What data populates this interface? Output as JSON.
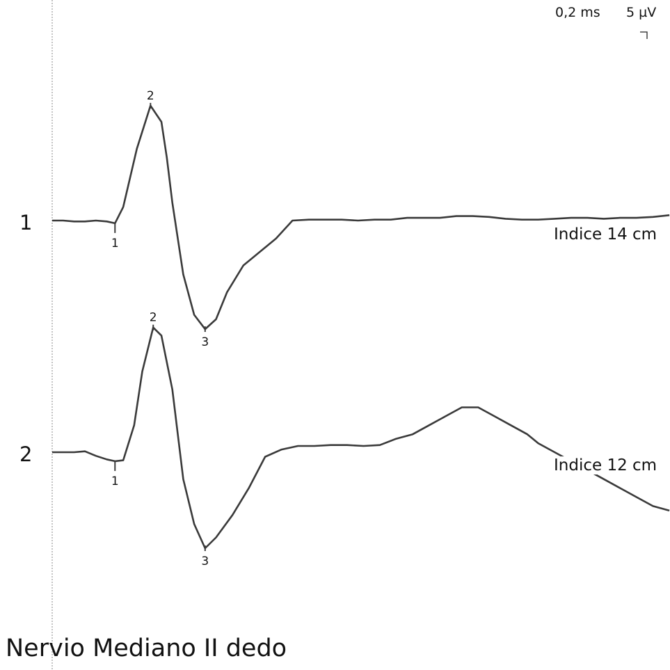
{
  "figure_title": "Nervio Mediano II dedo",
  "scale": {
    "time": "0,2 ms",
    "amplitude": "5 µV"
  },
  "chart_data": {
    "type": "line",
    "title": "Nervio Mediano II dedo",
    "xlabel": "",
    "ylabel": "",
    "x_unit": "ms",
    "y_unit": "µV",
    "traces": [
      {
        "number": "1",
        "name": "Indice 14 cm",
        "x": [
          0,
          0.2,
          0.4,
          0.6,
          0.8,
          1.0,
          1.15,
          1.3,
          1.55,
          1.8,
          2.0,
          2.1,
          2.2,
          2.4,
          2.6,
          2.8,
          3.0,
          3.2,
          3.5,
          3.8,
          4.1,
          4.4,
          4.7,
          5.0,
          5.3,
          5.6,
          5.9,
          6.2,
          6.5,
          6.8,
          7.1,
          7.4,
          7.7,
          8.0,
          8.3,
          8.6,
          8.9,
          9.2,
          9.5,
          9.8,
          10.1,
          10.4,
          10.7,
          11.0,
          11.3
        ],
        "values": [
          0,
          0,
          -0.1,
          -0.1,
          0,
          -0.1,
          -0.3,
          1.5,
          8,
          12.8,
          11,
          7,
          2,
          -6,
          -10.5,
          -12.1,
          -11,
          -8,
          -5,
          -3.5,
          -2,
          0,
          0.1,
          0.1,
          0.1,
          0,
          0.1,
          0.1,
          0.3,
          0.3,
          0.3,
          0.5,
          0.5,
          0.4,
          0.2,
          0.1,
          0.1,
          0.2,
          0.3,
          0.3,
          0.2,
          0.3,
          0.3,
          0.4,
          0.6
        ],
        "markers": [
          {
            "label": "1",
            "x": 1.15,
            "y": -0.3
          },
          {
            "label": "2",
            "x": 1.8,
            "y": 12.8
          },
          {
            "label": "3",
            "x": 2.8,
            "y": -12.1
          }
        ]
      },
      {
        "number": "2",
        "name": "Indice 12 cm",
        "x": [
          0,
          0.2,
          0.4,
          0.6,
          0.8,
          1.0,
          1.15,
          1.3,
          1.5,
          1.65,
          1.85,
          2.0,
          2.2,
          2.4,
          2.6,
          2.8,
          3.0,
          3.3,
          3.6,
          3.9,
          4.2,
          4.5,
          4.8,
          5.1,
          5.4,
          5.7,
          6.0,
          6.3,
          6.6,
          6.9,
          7.2,
          7.5,
          7.8,
          8.1,
          8.4,
          8.7,
          8.9,
          9.2,
          9.5,
          9.8,
          10.1,
          10.4,
          10.7,
          11.0,
          11.3
        ],
        "values": [
          0,
          0,
          0,
          0.1,
          -0.4,
          -0.8,
          -1,
          -0.9,
          3,
          9,
          13.9,
          13,
          7,
          -3,
          -8,
          -10.7,
          -9.5,
          -7,
          -4,
          -0.5,
          0.3,
          0.7,
          0.7,
          0.8,
          0.8,
          0.7,
          0.8,
          1.5,
          2,
          3,
          4,
          5,
          5,
          4,
          3,
          2,
          1,
          0,
          -1,
          -2,
          -3,
          -4,
          -5,
          -6,
          -6.5
        ],
        "markers": [
          {
            "label": "1",
            "x": 1.15,
            "y": -1
          },
          {
            "label": "2",
            "x": 1.85,
            "y": 13.9
          },
          {
            "label": "3",
            "x": 2.8,
            "y": -10.7
          }
        ]
      }
    ]
  }
}
